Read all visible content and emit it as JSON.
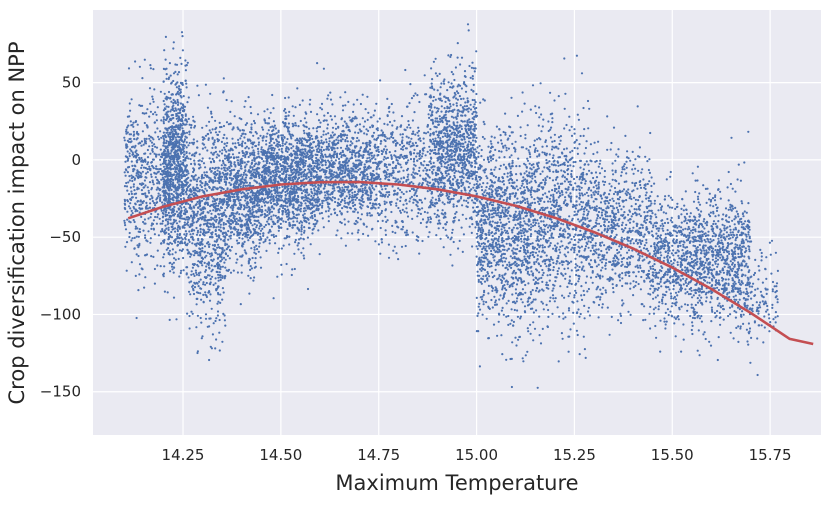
{
  "chart_data": {
    "type": "scatter",
    "title": "",
    "xlabel": "Maximum Temperature",
    "ylabel": "Crop diversification impact on NPP",
    "xlim": [
      14.02,
      15.88
    ],
    "ylim": [
      -178,
      97
    ],
    "xticks": [
      {
        "value": 14.25,
        "label": "14.25"
      },
      {
        "value": 14.5,
        "label": "14.50"
      },
      {
        "value": 14.75,
        "label": "14.75"
      },
      {
        "value": 15.0,
        "label": "15.00"
      },
      {
        "value": 15.25,
        "label": "15.25"
      },
      {
        "value": 15.5,
        "label": "15.50"
      },
      {
        "value": 15.75,
        "label": "15.75"
      }
    ],
    "yticks": [
      {
        "value": 50,
        "label": "50"
      },
      {
        "value": 0,
        "label": "0"
      },
      {
        "value": -50,
        "label": "−50"
      },
      {
        "value": -100,
        "label": "−100"
      },
      {
        "value": -150,
        "label": "−150"
      }
    ],
    "grid": true,
    "background": "#eaeaf2",
    "series": [
      {
        "kind": "scatter",
        "color": "#4c72b0",
        "clusters": [
          {
            "x": [
              14.1,
              14.2
            ],
            "mean": -12,
            "sd": 28,
            "n": 500
          },
          {
            "x": [
              14.2,
              14.26
            ],
            "mean": -5,
            "sd": 30,
            "n": 1000
          },
          {
            "x": [
              14.26,
              14.36
            ],
            "mean": -35,
            "sd": 32,
            "n": 900
          },
          {
            "x": [
              14.36,
              14.45
            ],
            "mean": -22,
            "sd": 22,
            "n": 800
          },
          {
            "x": [
              14.45,
              14.6
            ],
            "mean": -12,
            "sd": 20,
            "n": 1400
          },
          {
            "x": [
              14.6,
              14.75
            ],
            "mean": -6,
            "sd": 18,
            "n": 900
          },
          {
            "x": [
              14.75,
              14.88
            ],
            "mean": -8,
            "sd": 22,
            "n": 500
          },
          {
            "x": [
              14.88,
              15.0
            ],
            "mean": 5,
            "sd": 25,
            "n": 1000
          },
          {
            "x": [
              15.0,
              15.15
            ],
            "mean": -45,
            "sd": 32,
            "n": 1200
          },
          {
            "x": [
              15.15,
              15.28
            ],
            "mean": -40,
            "sd": 33,
            "n": 800
          },
          {
            "x": [
              15.28,
              15.45
            ],
            "mean": -45,
            "sd": 25,
            "n": 800
          },
          {
            "x": [
              15.45,
              15.55
            ],
            "mean": -65,
            "sd": 20,
            "n": 500
          },
          {
            "x": [
              15.55,
              15.7
            ],
            "mean": -65,
            "sd": 22,
            "n": 900
          },
          {
            "x": [
              15.7,
              15.77
            ],
            "mean": -90,
            "sd": 15,
            "n": 100
          }
        ]
      },
      {
        "kind": "line",
        "color": "#c44e52",
        "x": [
          14.11,
          14.2,
          14.3,
          14.4,
          14.5,
          14.6,
          14.7,
          14.8,
          14.9,
          15.0,
          15.1,
          15.2,
          15.3,
          15.4,
          15.5,
          15.6,
          15.7,
          15.8,
          15.86
        ],
        "y": [
          -37.8,
          -30.2,
          -23.6,
          -19.0,
          -15.9,
          -14.4,
          -14.3,
          -15.9,
          -19.0,
          -23.6,
          -29.7,
          -37.4,
          -46.7,
          -57.4,
          -69.7,
          -83.5,
          -98.9,
          -115.8,
          -119.1
        ]
      }
    ]
  }
}
